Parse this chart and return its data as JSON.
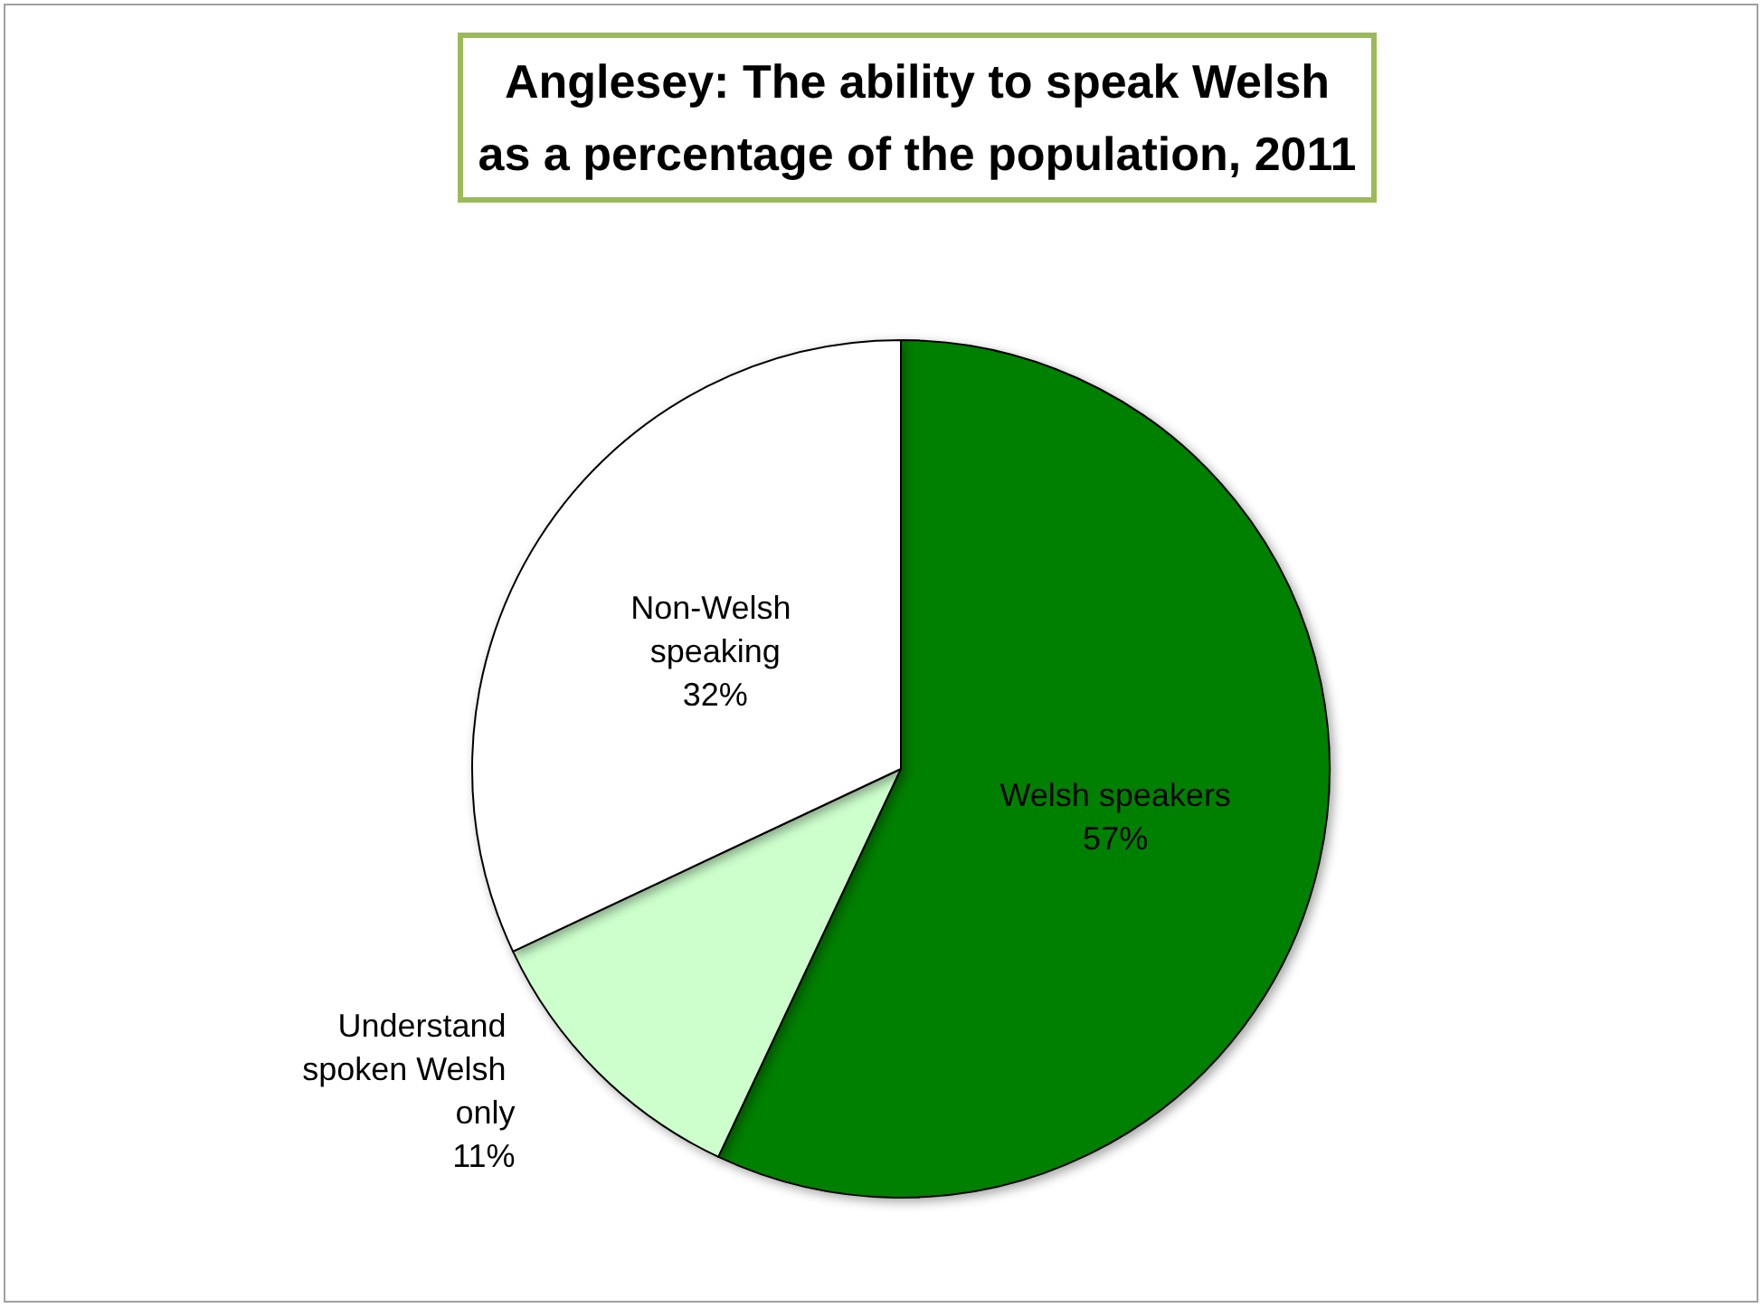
{
  "chart_data": {
    "type": "pie",
    "title": "Anglesey: The ability to speak Welsh as a percentage of the population, 2011",
    "categories": [
      "Welsh speakers",
      "Understand spoken Welsh only",
      "Non-Welsh speaking"
    ],
    "values": [
      57,
      11,
      32
    ],
    "colors": [
      "#008000",
      "#ccffcc",
      "#ffffff"
    ],
    "value_labels": [
      "57%",
      "11%",
      "32%"
    ]
  }
}
